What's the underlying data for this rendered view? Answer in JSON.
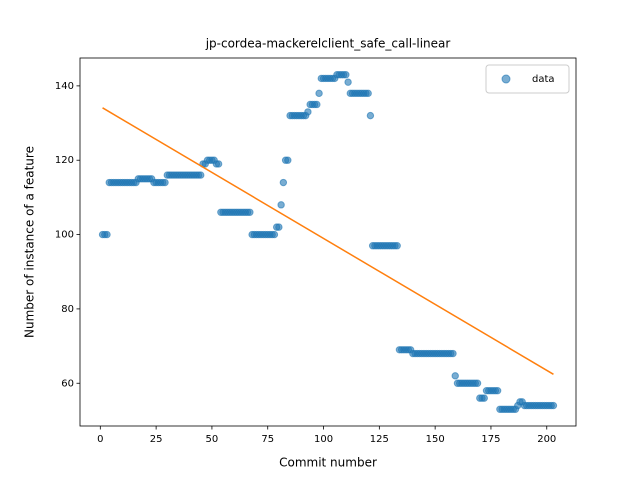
{
  "chart_data": {
    "type": "scatter",
    "title": "jp-cordea-mackerelclient_safe_call-linear",
    "x_label": "Commit number",
    "y_label": "Number of instance of a feature",
    "xlim": [
      -9.1,
      213.1
    ],
    "ylim": [
      48.5,
      147.5
    ],
    "xticks": [
      0,
      25,
      50,
      75,
      100,
      125,
      150,
      175,
      200
    ],
    "yticks": [
      60,
      80,
      100,
      120,
      140
    ],
    "legend": "upper right",
    "series": [
      {
        "name": "data",
        "style": "markers",
        "color": "#1f77b4",
        "x": [
          1,
          2,
          3,
          4,
          5,
          6,
          7,
          8,
          9,
          10,
          11,
          12,
          13,
          14,
          15,
          16,
          17,
          18,
          19,
          20,
          21,
          22,
          23,
          24,
          25,
          26,
          27,
          28,
          29,
          30,
          31,
          32,
          33,
          34,
          35,
          36,
          37,
          38,
          39,
          40,
          41,
          42,
          43,
          44,
          45,
          46,
          47,
          48,
          49,
          50,
          51,
          52,
          53,
          54,
          55,
          56,
          57,
          58,
          59,
          60,
          61,
          62,
          63,
          64,
          65,
          66,
          67,
          68,
          69,
          70,
          71,
          72,
          73,
          74,
          75,
          76,
          77,
          78,
          79,
          80,
          81,
          82,
          83,
          84,
          85,
          86,
          87,
          88,
          89,
          90,
          91,
          92,
          93,
          94,
          95,
          96,
          97,
          98,
          99,
          100,
          101,
          102,
          103,
          104,
          105,
          106,
          107,
          108,
          109,
          110,
          111,
          112,
          113,
          114,
          115,
          116,
          117,
          118,
          119,
          120,
          121,
          122,
          123,
          124,
          125,
          126,
          127,
          128,
          129,
          130,
          131,
          132,
          133,
          134,
          135,
          136,
          137,
          138,
          139,
          140,
          141,
          142,
          143,
          144,
          145,
          146,
          147,
          148,
          149,
          150,
          151,
          152,
          153,
          154,
          155,
          156,
          157,
          158,
          159,
          160,
          161,
          162,
          163,
          164,
          165,
          166,
          167,
          168,
          169,
          170,
          171,
          172,
          173,
          174,
          175,
          176,
          177,
          178,
          179,
          180,
          181,
          182,
          183,
          184,
          185,
          186,
          187,
          188,
          189,
          190,
          191,
          192,
          193,
          194,
          195,
          196,
          197,
          198,
          199,
          200,
          201,
          202,
          203
        ],
        "values": [
          100,
          100,
          100,
          114,
          114,
          114,
          114,
          114,
          114,
          114,
          114,
          114,
          114,
          114,
          114,
          114,
          115,
          115,
          115,
          115,
          115,
          115,
          115,
          114,
          114,
          114,
          114,
          114,
          114,
          116,
          116,
          116,
          116,
          116,
          116,
          116,
          116,
          116,
          116,
          116,
          116,
          116,
          116,
          116,
          116,
          119,
          119,
          120,
          120,
          120,
          120,
          119,
          119,
          106,
          106,
          106,
          106,
          106,
          106,
          106,
          106,
          106,
          106,
          106,
          106,
          106,
          106,
          100,
          100,
          100,
          100,
          100,
          100,
          100,
          100,
          100,
          100,
          100,
          102,
          102,
          108,
          114,
          120,
          120,
          132,
          132,
          132,
          132,
          132,
          132,
          132,
          132,
          133,
          135,
          135,
          135,
          135,
          138,
          142,
          142,
          142,
          142,
          142,
          142,
          142,
          143,
          143,
          143,
          143,
          143,
          141,
          138,
          138,
          138,
          138,
          138,
          138,
          138,
          138,
          138,
          132,
          97,
          97,
          97,
          97,
          97,
          97,
          97,
          97,
          97,
          97,
          97,
          97,
          69,
          69,
          69,
          69,
          69,
          69,
          68,
          68,
          68,
          68,
          68,
          68,
          68,
          68,
          68,
          68,
          68,
          68,
          68,
          68,
          68,
          68,
          68,
          68,
          68,
          62,
          60,
          60,
          60,
          60,
          60,
          60,
          60,
          60,
          60,
          60,
          56,
          56,
          56,
          58,
          58,
          58,
          58,
          58,
          58,
          53,
          53,
          53,
          53,
          53,
          53,
          53,
          53,
          54,
          55,
          55,
          54,
          54,
          54,
          54,
          54,
          54,
          54,
          54,
          54,
          54,
          54,
          54,
          54,
          54
        ]
      },
      {
        "style": "line",
        "color": "#ff7f0e",
        "x": [
          1,
          203
        ],
        "values": [
          134.1,
          62.4
        ]
      }
    ]
  }
}
